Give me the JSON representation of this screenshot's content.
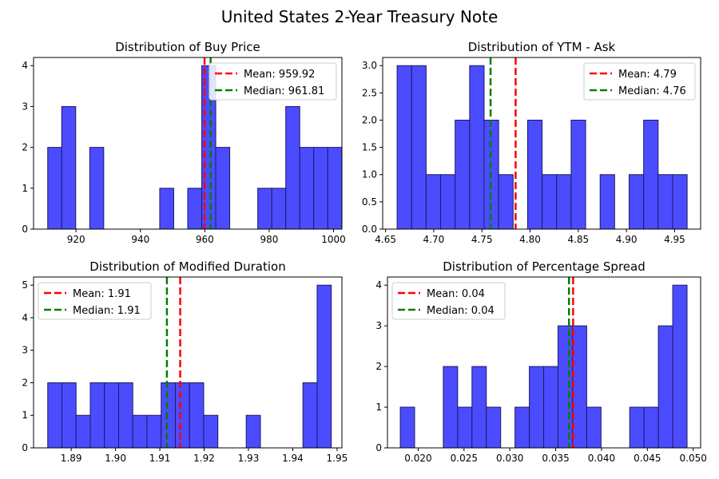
{
  "figure": {
    "suptitle": "United States 2-Year Treasury Note",
    "colors": {
      "bar_fill": "#4c4cff",
      "bar_edge": "#1a1a66",
      "mean": "#ff0000",
      "median": "#008000"
    }
  },
  "chart_data": [
    {
      "type": "histogram",
      "title": "Distribution of Buy Price",
      "bin_start": 911.2,
      "bin_width": 4.35,
      "counts": [
        2,
        3,
        0,
        2,
        0,
        0,
        0,
        0,
        1,
        0,
        1,
        4,
        2,
        0,
        0,
        1,
        1,
        3,
        2,
        2,
        2
      ],
      "xlim": [
        906.8,
        1002.6
      ],
      "ylim": [
        0,
        4.2
      ],
      "xticks": [
        920,
        940,
        960,
        980,
        1000
      ],
      "xtick_labels": [
        "920",
        "940",
        "960",
        "980",
        "1000"
      ],
      "yticks": [
        0,
        1,
        2,
        3,
        4
      ],
      "ytick_labels": [
        "0",
        "1",
        "2",
        "3",
        "4"
      ],
      "mean": 959.92,
      "median": 961.81,
      "legend": [
        "Mean: 959.92",
        "Median: 961.81"
      ],
      "legend_loc": "upper right"
    },
    {
      "type": "histogram",
      "title": "Distribution of YTM - Ask",
      "bin_start": 4.662,
      "bin_width": 0.01505,
      "counts": [
        3,
        3,
        1,
        1,
        2,
        3,
        2,
        1,
        0,
        2,
        1,
        1,
        2,
        0,
        1,
        0,
        1,
        2,
        1,
        1
      ],
      "xlim": [
        4.647,
        4.977
      ],
      "ylim": [
        0,
        3.15
      ],
      "xticks": [
        4.65,
        4.7,
        4.75,
        4.8,
        4.85,
        4.9,
        4.95
      ],
      "xtick_labels": [
        "4.65",
        "4.70",
        "4.75",
        "4.80",
        "4.85",
        "4.90",
        "4.95"
      ],
      "yticks": [
        0,
        0.5,
        1.0,
        1.5,
        2.0,
        2.5,
        3.0
      ],
      "ytick_labels": [
        "0.0",
        "0.5",
        "1.0",
        "1.5",
        "2.0",
        "2.5",
        "3.0"
      ],
      "mean": 4.785,
      "median": 4.759,
      "legend": [
        "Mean: 4.79",
        "Median: 4.76"
      ],
      "legend_loc": "upper right"
    },
    {
      "type": "histogram",
      "title": "Distribution of Modified Duration",
      "bin_start": 1.8847,
      "bin_width": 0.0032,
      "counts": [
        2,
        2,
        1,
        2,
        2,
        2,
        1,
        1,
        2,
        2,
        2,
        1,
        0,
        0,
        1,
        0,
        0,
        0,
        2,
        5
      ],
      "xlim": [
        1.8815,
        1.9511
      ],
      "ylim": [
        0,
        5.25
      ],
      "xticks": [
        1.89,
        1.9,
        1.91,
        1.92,
        1.93,
        1.94,
        1.95
      ],
      "xtick_labels": [
        "1.89",
        "1.90",
        "1.91",
        "1.92",
        "1.93",
        "1.94",
        "1.95"
      ],
      "yticks": [
        0,
        1,
        2,
        3,
        4,
        5
      ],
      "ytick_labels": [
        "0",
        "1",
        "2",
        "3",
        "4",
        "5"
      ],
      "mean": 1.9146,
      "median": 1.9116,
      "legend": [
        "Mean: 1.91",
        "Median: 1.91"
      ],
      "legend_loc": "upper left"
    },
    {
      "type": "histogram",
      "title": "Distribution of Percentage Spread",
      "bin_start": 0.01805,
      "bin_width": 0.001564,
      "counts": [
        1,
        0,
        0,
        2,
        1,
        2,
        1,
        0,
        1,
        2,
        2,
        3,
        3,
        1,
        0,
        0,
        1,
        1,
        3,
        4
      ],
      "xlim": [
        0.01665,
        0.05081
      ],
      "ylim": [
        0,
        4.2
      ],
      "xticks": [
        0.02,
        0.025,
        0.03,
        0.035,
        0.04,
        0.045,
        0.05
      ],
      "xtick_labels": [
        "0.020",
        "0.025",
        "0.030",
        "0.035",
        "0.040",
        "0.045",
        "0.050"
      ],
      "yticks": [
        0,
        1,
        2,
        3,
        4
      ],
      "ytick_labels": [
        "0",
        "1",
        "2",
        "3",
        "4"
      ],
      "mean": 0.0369,
      "median": 0.03645,
      "legend": [
        "Mean: 0.04",
        "Median: 0.04"
      ],
      "legend_loc": "upper left"
    }
  ]
}
